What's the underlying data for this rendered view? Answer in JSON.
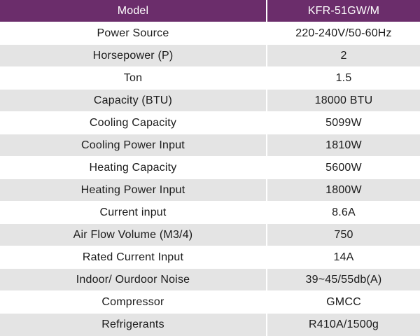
{
  "header": {
    "col1": "Model",
    "col2": "KFR-51GW/M"
  },
  "rows": [
    {
      "label": "Power Source",
      "value": "220-240V/50-60Hz"
    },
    {
      "label": "Horsepower (P)",
      "value": "2"
    },
    {
      "label": "Ton",
      "value": "1.5"
    },
    {
      "label": "Capacity (BTU)",
      "value": "18000 BTU"
    },
    {
      "label": "Cooling Capacity",
      "value": "5099W"
    },
    {
      "label": "Cooling Power Input",
      "value": "1810W"
    },
    {
      "label": "Heating Capacity",
      "value": "5600W"
    },
    {
      "label": "Heating Power Input",
      "value": "1800W"
    },
    {
      "label": "Current input",
      "value": "8.6A"
    },
    {
      "label": "Air Flow Volume (M3/4)",
      "value": "750"
    },
    {
      "label": "Rated Current Input",
      "value": "14A"
    },
    {
      "label": "Indoor/ Ourdoor Noise",
      "value": "39~45/55db(A)"
    },
    {
      "label": "Compressor",
      "value": "GMCC"
    },
    {
      "label": "Refrigerants",
      "value": "R410A/1500g"
    }
  ],
  "colors": {
    "header_bg": "#6b2d6b",
    "header_text": "#ffffff",
    "row_alt_bg": "#e4e4e4",
    "row_bg": "#ffffff"
  }
}
